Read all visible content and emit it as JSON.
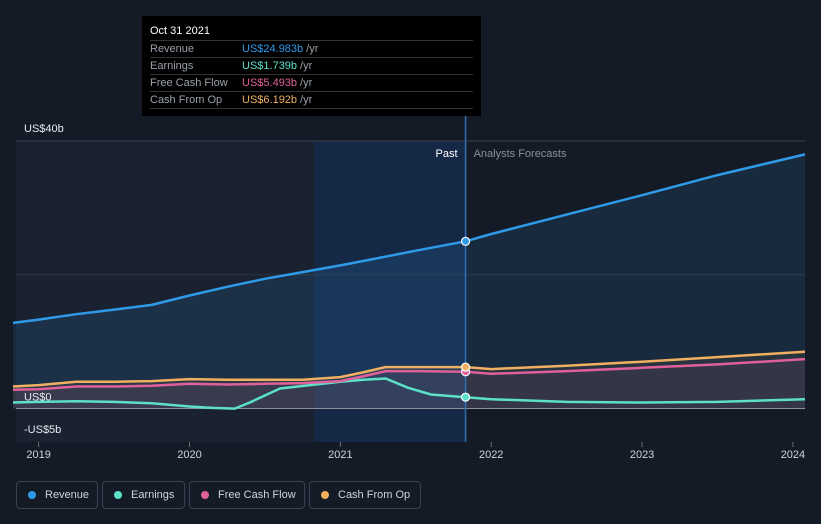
{
  "tooltip": {
    "date": "Oct 31 2021",
    "rows": [
      {
        "label": "Revenue",
        "value": "US$24.983b",
        "unit": "/yr",
        "color": "#2e9ae8"
      },
      {
        "label": "Earnings",
        "value": "US$1.739b",
        "unit": "/yr",
        "color": "#5ce0c8"
      },
      {
        "label": "Free Cash Flow",
        "value": "US$5.493b",
        "unit": "/yr",
        "color": "#e0609a"
      },
      {
        "label": "Cash From Op",
        "value": "US$6.192b",
        "unit": "/yr",
        "color": "#f0b060"
      }
    ]
  },
  "legend": [
    {
      "label": "Revenue",
      "color": "#2e9ae8"
    },
    {
      "label": "Earnings",
      "color": "#5ce0c8"
    },
    {
      "label": "Free Cash Flow",
      "color": "#e0609a"
    },
    {
      "label": "Cash From Op",
      "color": "#f0b060"
    }
  ],
  "chart_data": {
    "type": "area",
    "title": "",
    "y_tick_labels": [
      "US$40b",
      "US$0",
      "-US$5b"
    ],
    "ylim": [
      -5,
      40
    ],
    "xlim": [
      2018.85,
      2024.08
    ],
    "x_tick_labels": [
      "2019",
      "2020",
      "2021",
      "2022",
      "2023",
      "2024"
    ],
    "x_ticks": [
      2019,
      2020,
      2021,
      2022,
      2023,
      2024
    ],
    "past_label": "Past",
    "forecast_label": "Analysts Forecasts",
    "divider_x": 2021.83,
    "highlight_start_x": 2020.83,
    "series": [
      {
        "name": "Revenue",
        "color": "#2e9ae8",
        "points": [
          [
            2018.83,
            12.8
          ],
          [
            2019.0,
            13.3
          ],
          [
            2019.25,
            14.1
          ],
          [
            2019.5,
            14.8
          ],
          [
            2019.75,
            15.5
          ],
          [
            2020.0,
            16.9
          ],
          [
            2020.25,
            18.2
          ],
          [
            2020.5,
            19.4
          ],
          [
            2020.75,
            20.4
          ],
          [
            2021.0,
            21.4
          ],
          [
            2021.25,
            22.5
          ],
          [
            2021.5,
            23.6
          ],
          [
            2021.83,
            25.0
          ],
          [
            2022.0,
            26.1
          ],
          [
            2022.5,
            29.0
          ],
          [
            2023.0,
            31.9
          ],
          [
            2023.5,
            34.9
          ],
          [
            2024.08,
            38.0
          ]
        ]
      },
      {
        "name": "Earnings",
        "color": "#5ce0c8",
        "points": [
          [
            2018.83,
            0.9
          ],
          [
            2019.0,
            1.0
          ],
          [
            2019.25,
            1.1
          ],
          [
            2019.5,
            1.0
          ],
          [
            2019.75,
            0.8
          ],
          [
            2020.0,
            0.3
          ],
          [
            2020.15,
            0.1
          ],
          [
            2020.3,
            0.0
          ],
          [
            2020.4,
            0.9
          ],
          [
            2020.6,
            3.0
          ],
          [
            2020.8,
            3.5
          ],
          [
            2021.0,
            4.0
          ],
          [
            2021.15,
            4.3
          ],
          [
            2021.3,
            4.5
          ],
          [
            2021.45,
            3.1
          ],
          [
            2021.6,
            2.1
          ],
          [
            2021.83,
            1.7
          ],
          [
            2022.0,
            1.4
          ],
          [
            2022.5,
            1.0
          ],
          [
            2023.0,
            0.9
          ],
          [
            2023.5,
            1.0
          ],
          [
            2024.08,
            1.4
          ]
        ]
      },
      {
        "name": "Free Cash Flow",
        "color": "#e0609a",
        "points": [
          [
            2018.83,
            2.8
          ],
          [
            2019.0,
            2.9
          ],
          [
            2019.25,
            3.3
          ],
          [
            2019.5,
            3.3
          ],
          [
            2019.75,
            3.4
          ],
          [
            2020.0,
            3.7
          ],
          [
            2020.25,
            3.6
          ],
          [
            2020.5,
            3.7
          ],
          [
            2020.75,
            3.8
          ],
          [
            2021.0,
            4.1
          ],
          [
            2021.15,
            4.8
          ],
          [
            2021.3,
            5.6
          ],
          [
            2021.5,
            5.6
          ],
          [
            2021.83,
            5.5
          ],
          [
            2022.0,
            5.2
          ],
          [
            2022.5,
            5.6
          ],
          [
            2023.0,
            6.1
          ],
          [
            2023.5,
            6.6
          ],
          [
            2024.08,
            7.4
          ]
        ]
      },
      {
        "name": "Cash From Op",
        "color": "#f0b060",
        "points": [
          [
            2018.83,
            3.3
          ],
          [
            2019.0,
            3.5
          ],
          [
            2019.25,
            4.0
          ],
          [
            2019.5,
            4.0
          ],
          [
            2019.75,
            4.1
          ],
          [
            2020.0,
            4.4
          ],
          [
            2020.25,
            4.3
          ],
          [
            2020.5,
            4.3
          ],
          [
            2020.75,
            4.3
          ],
          [
            2021.0,
            4.7
          ],
          [
            2021.15,
            5.4
          ],
          [
            2021.3,
            6.2
          ],
          [
            2021.5,
            6.2
          ],
          [
            2021.83,
            6.2
          ],
          [
            2022.0,
            5.9
          ],
          [
            2022.5,
            6.4
          ],
          [
            2023.0,
            7.0
          ],
          [
            2023.5,
            7.7
          ],
          [
            2024.08,
            8.5
          ]
        ]
      }
    ]
  }
}
